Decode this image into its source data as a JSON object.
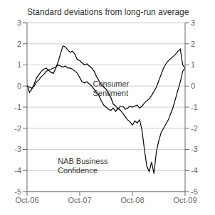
{
  "chart_data": {
    "type": "line",
    "title": "Standard deviations from long-run average",
    "x": [
      0,
      0.5454545454545454,
      1.0909090909090908,
      1.6363636363636362,
      2.1818181818181817,
      2.727272727272727,
      3.272727272727273,
      3.8181818181818183,
      4.363636363636363,
      4.909090909090909,
      5.454545454545454,
      6,
      6.545454545454545,
      7.090909090909091,
      7.636363636363637,
      8.181818181818182,
      8.727272727272727,
      9.272727272727273,
      9.818181818181818,
      10.363636363636363,
      10.909090909090908,
      11.454545454545455,
      12,
      12.545454545454545,
      13.090909090909092,
      13.636363636363637,
      14.181818181818182,
      14.727272727272727,
      15.272727272727273,
      15.818181818181818,
      16.363636363636363,
      16.90909090909091,
      17.454545454545453,
      18,
      18.545454545454547,
      19.09090909090909,
      19.636363636363637,
      20.181818181818183,
      20.727272727272727,
      21.272727272727273,
      21.818181818181817,
      22.363636363636363,
      22.90909090909091,
      23.454545454545453,
      24,
      24.545454545454547,
      25.09090909090909,
      25.636363636363637,
      26.181818181818183,
      26.727272727272727,
      27.272727272727273,
      27.818181818181817,
      28.363636363636363,
      28.90909090909091,
      29.454545454545453,
      30,
      30.545454545454547,
      31.09090909090909,
      31.636363636363637,
      32.18181818181818,
      32.72727272727273,
      33.27272727272727,
      33.81818181818182,
      34.36363636363637,
      34.90909090909091,
      35.45454545454545,
      36
    ],
    "xlim": [
      0,
      36
    ],
    "xticks": [
      {
        "value": 0,
        "label": "Oct-06"
      },
      {
        "value": 12,
        "label": "Oct-07"
      },
      {
        "value": 24,
        "label": "Oct-08"
      },
      {
        "value": 36,
        "label": "Oct-09"
      }
    ],
    "ylim": [
      -5,
      3
    ],
    "yticks": [
      -5,
      -4,
      -3,
      -2,
      -1,
      0,
      1,
      2,
      3
    ],
    "y2lim": [
      -5,
      3
    ],
    "y2ticks": [
      -5,
      -4,
      -3,
      -2,
      -1,
      0,
      1,
      2,
      3
    ],
    "grid": true,
    "series": [
      {
        "color": "#000000",
        "values": [
          0.05,
          -0.3,
          -0.15,
          0.1,
          0.4,
          0.55,
          0.7,
          0.8,
          0.85,
          0.75,
          0.65,
          0.6,
          0.85,
          1.15,
          1.55,
          1.9,
          1.85,
          1.7,
          1.6,
          1.65,
          1.5,
          1.25,
          1.2,
          1.1,
          1.0,
          1.05,
          0.95,
          0.85,
          0.7,
          0.45,
          0.25,
          0.05,
          -0.05,
          -0.15,
          -0.35,
          -0.55,
          -0.85,
          -0.95,
          -1.1,
          -0.95,
          -0.95,
          -1.1,
          -1.05,
          -0.95,
          -1.0,
          -0.95,
          -0.9,
          -1.05,
          -0.95,
          -0.8,
          -0.7,
          -0.6,
          -0.45,
          -0.25,
          -0.05,
          0.25,
          0.55,
          0.85,
          1.05,
          1.2,
          1.3,
          1.4,
          1.5,
          1.65,
          1.75,
          1.0,
          0.85
        ]
      },
      {
        "color": "#000000",
        "values": [
          0.0,
          -0.05,
          -0.1,
          0.0,
          0.2,
          0.3,
          0.45,
          0.55,
          0.7,
          0.75,
          0.8,
          0.85,
          0.9,
          1.0,
          0.95,
          0.9,
          0.95,
          0.85,
          0.85,
          0.8,
          0.7,
          0.6,
          0.4,
          0.2,
          0.15,
          0.2,
          0.1,
          0.0,
          -0.15,
          -0.3,
          -0.45,
          -0.7,
          -0.9,
          -1.0,
          -1.1,
          -1.15,
          -1.05,
          -1.2,
          -1.05,
          -1.15,
          -1.3,
          -1.45,
          -1.6,
          -1.7,
          -1.85,
          -1.65,
          -1.75,
          -1.6,
          -2.1,
          -3.0,
          -3.8,
          -4.05,
          -3.6,
          -4.15,
          -3.1,
          -2.6,
          -2.2,
          -2.0,
          -1.8,
          -1.6,
          -1.3,
          -1.0,
          -0.6,
          -0.2,
          0.2,
          0.7,
          0.85
        ]
      }
    ],
    "annotations": [
      {
        "text": "Consumer\nSentiment",
        "x": 15,
        "y": 0.3
      },
      {
        "text": "NAB Business\nConfidence",
        "x": 7,
        "y": -3.35
      }
    ]
  }
}
